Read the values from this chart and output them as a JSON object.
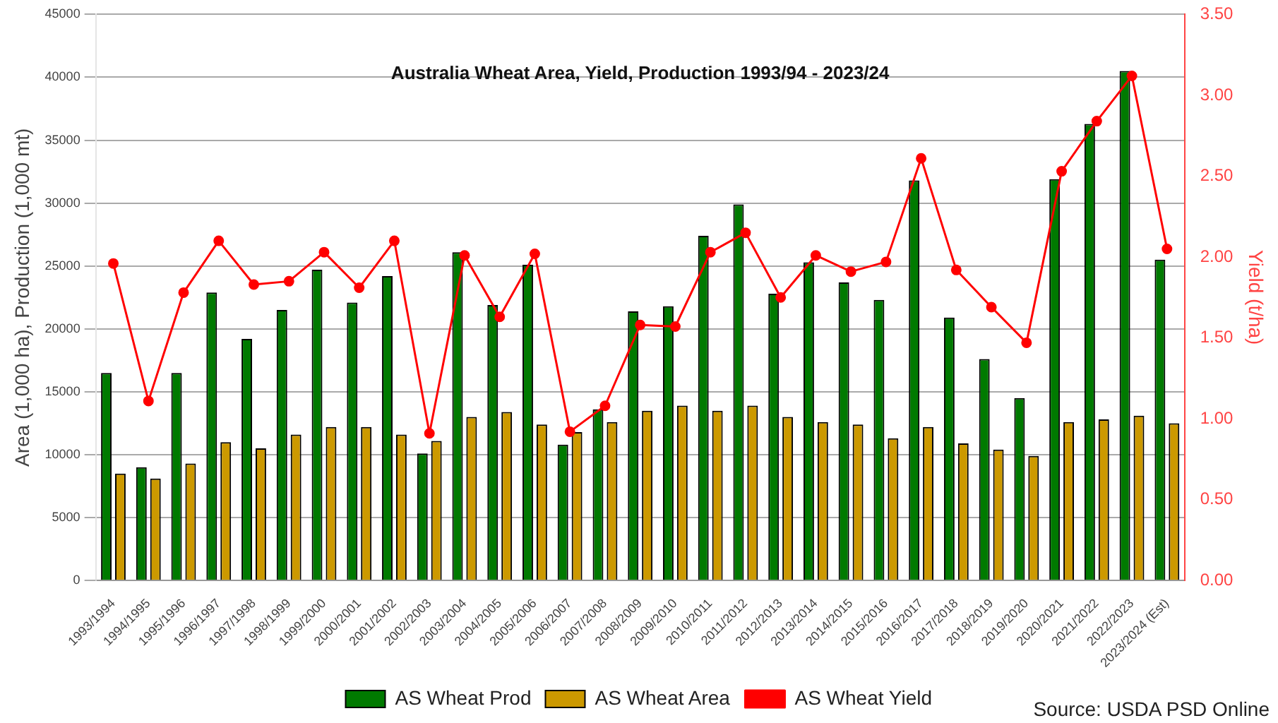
{
  "chart_data": {
    "type": "bar",
    "title": "Australia Wheat Area, Yield, Production 1993/94 - 2023/24",
    "ylabel": "Area (1,000 ha), Production (1,000 mt)",
    "y2label": "Yield (t/ha)",
    "categories": [
      "1993/1994",
      "1994/1995",
      "1995/1996",
      "1996/1997",
      "1997/1998",
      "1998/1999",
      "1999/2000",
      "2000/2001",
      "2001/2002",
      "2002/2003",
      "2003/2004",
      "2004/2005",
      "2005/2006",
      "2006/2007",
      "2007/2008",
      "2008/2009",
      "2009/2010",
      "2010/2011",
      "2011/2012",
      "2012/2013",
      "2013/2014",
      "2014/2015",
      "2015/2016",
      "2016/2017",
      "2017/2018",
      "2018/2019",
      "2019/2020",
      "2020/2021",
      "2021/2022",
      "2022/2023",
      "2023/2024 (Est)"
    ],
    "series": [
      {
        "name": "AS Wheat Prod",
        "color": "#007a00",
        "values": [
          16500,
          9000,
          16500,
          22900,
          19200,
          21500,
          24700,
          22100,
          24200,
          10100,
          26100,
          21900,
          25100,
          10800,
          13600,
          21400,
          21800,
          27400,
          29900,
          22800,
          25300,
          23700,
          22300,
          31800,
          20900,
          17600,
          14500,
          31900,
          36300,
          40500,
          25500
        ]
      },
      {
        "name": "AS Wheat Area",
        "color": "#cc9900",
        "values": [
          8500,
          8100,
          9300,
          11000,
          10500,
          11600,
          12200,
          12200,
          11600,
          11100,
          13000,
          13400,
          12400,
          11800,
          12600,
          13500,
          13900,
          13500,
          13900,
          13000,
          12600,
          12400,
          11300,
          12200,
          10900,
          10400,
          9900,
          12600,
          12800,
          13100,
          12500
        ]
      },
      {
        "name": "AS Wheat Yield",
        "type": "line",
        "axis": "y2",
        "color": "#ff0000",
        "values": [
          1.96,
          1.11,
          1.78,
          2.1,
          1.83,
          1.85,
          2.03,
          1.81,
          2.1,
          0.91,
          2.01,
          1.63,
          2.02,
          0.92,
          1.08,
          1.58,
          1.57,
          2.03,
          2.15,
          1.75,
          2.01,
          1.91,
          1.97,
          2.61,
          1.92,
          1.69,
          1.47,
          2.53,
          2.84,
          3.12,
          2.05
        ]
      }
    ],
    "ylim": [
      0,
      45000
    ],
    "yticks": [
      0,
      5000,
      10000,
      15000,
      20000,
      25000,
      30000,
      35000,
      40000,
      45000
    ],
    "y2lim": [
      0,
      3.5
    ],
    "y2ticks": [
      {
        "value": 0,
        "label": "0.00"
      },
      {
        "value": 0.5,
        "label": "0.50"
      },
      {
        "value": 1,
        "label": "1.00"
      },
      {
        "value": 1.5,
        "label": "1.50"
      },
      {
        "value": 2,
        "label": "2.00"
      },
      {
        "value": 2.5,
        "label": "2.50"
      },
      {
        "value": 3,
        "label": "3.00"
      },
      {
        "value": 3.5,
        "label": "3.50"
      }
    ],
    "grid": "y",
    "legend": "bottom",
    "marker": "circle",
    "line_style": "solid",
    "annotations": [
      "Source: USDA PSD Online"
    ]
  }
}
